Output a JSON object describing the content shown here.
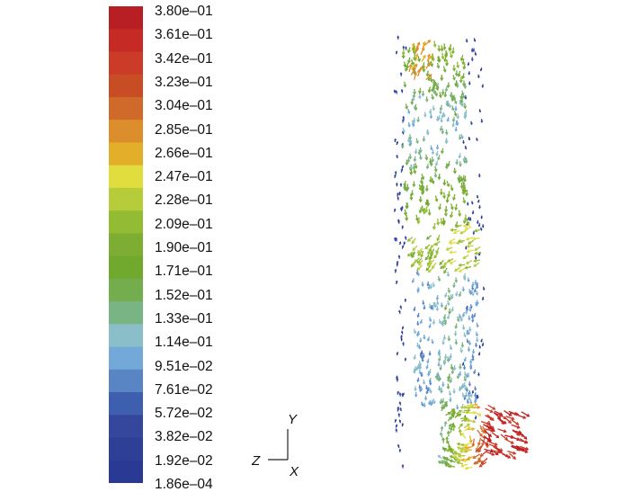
{
  "colormap": {
    "labels": [
      "3.80e–01",
      "3.61e–01",
      "3.42e–01",
      "3.23e–01",
      "3.04e–01",
      "2.85e–01",
      "2.66e–01",
      "2.47e–01",
      "2.28e–01",
      "2.09e–01",
      "1.90e–01",
      "1.71e–01",
      "1.52e–01",
      "1.33e–01",
      "1.14e–01",
      "9.51e–02",
      "7.61e–02",
      "5.72e–02",
      "3.82e–02",
      "1.92e–02",
      "1.86e–04"
    ],
    "colors": [
      "#b81f25",
      "#c52a25",
      "#cc3b27",
      "#c84d25",
      "#d06a2a",
      "#dc8e2c",
      "#e3ae2a",
      "#e1dd3e",
      "#b6cc3a",
      "#94bb34",
      "#7dae33",
      "#71a92e",
      "#74ad4d",
      "#79b485",
      "#8abfca",
      "#72a9d8",
      "#5a85c5",
      "#3e5fae",
      "#34479d",
      "#2e3f98",
      "#2a3993"
    ]
  },
  "axis_triad": {
    "y_label": "Y",
    "z_label": "Z",
    "x_label": "X"
  }
}
